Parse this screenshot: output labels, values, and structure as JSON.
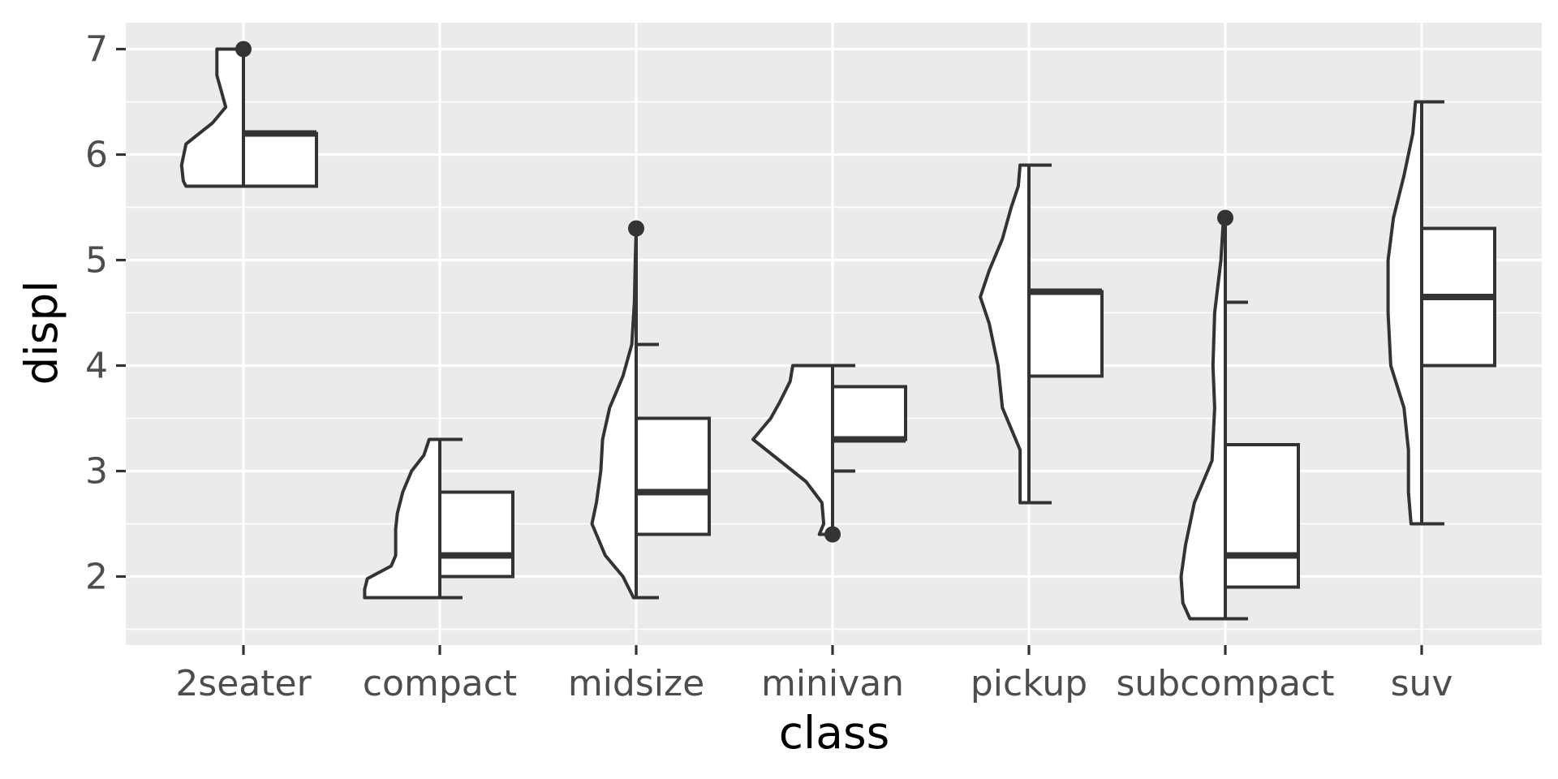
{
  "chart_data": {
    "type": "half-violin-boxplot",
    "xlabel": "class",
    "ylabel": "displ",
    "categories": [
      "2seater",
      "compact",
      "midsize",
      "minivan",
      "pickup",
      "subcompact",
      "suv"
    ],
    "ylim": [
      1.35,
      7.25
    ],
    "yticks": [
      2,
      3,
      4,
      5,
      6,
      7
    ],
    "grid": true,
    "boxes": [
      {
        "class": "2seater",
        "min": 5.7,
        "q1": 5.7,
        "median": 6.2,
        "q3": 6.2,
        "max": 6.2,
        "outliers": [
          7.0
        ]
      },
      {
        "class": "compact",
        "min": 1.8,
        "q1": 2.0,
        "median": 2.2,
        "q3": 2.8,
        "max": 3.3,
        "outliers": []
      },
      {
        "class": "midsize",
        "min": 1.8,
        "q1": 2.4,
        "median": 2.8,
        "q3": 3.5,
        "max": 4.2,
        "outliers": [
          5.3
        ]
      },
      {
        "class": "minivan",
        "min": 3.0,
        "q1": 3.3,
        "median": 3.3,
        "q3": 3.8,
        "max": 4.0,
        "outliers": [
          2.4
        ]
      },
      {
        "class": "pickup",
        "min": 2.7,
        "q1": 3.9,
        "median": 4.7,
        "q3": 4.7,
        "max": 5.9,
        "outliers": []
      },
      {
        "class": "subcompact",
        "min": 1.6,
        "q1": 1.9,
        "median": 2.2,
        "q3": 3.25,
        "max": 4.6,
        "outliers": [
          5.4
        ]
      },
      {
        "class": "suv",
        "min": 2.5,
        "q1": 4.0,
        "median": 4.65,
        "q3": 5.3,
        "max": 6.5,
        "outliers": []
      }
    ],
    "violins": [
      {
        "class": "2seater",
        "density": [
          [
            5.7,
            0.65
          ],
          [
            5.75,
            0.68
          ],
          [
            5.9,
            0.7
          ],
          [
            6.1,
            0.65
          ],
          [
            6.3,
            0.35
          ],
          [
            6.45,
            0.2
          ],
          [
            6.6,
            0.25
          ],
          [
            6.75,
            0.3
          ],
          [
            6.9,
            0.3
          ],
          [
            7.0,
            0.3
          ]
        ]
      },
      {
        "class": "compact",
        "density": [
          [
            1.8,
            0.85
          ],
          [
            1.88,
            0.85
          ],
          [
            1.98,
            0.82
          ],
          [
            2.1,
            0.55
          ],
          [
            2.2,
            0.5
          ],
          [
            2.3,
            0.5
          ],
          [
            2.45,
            0.5
          ],
          [
            2.6,
            0.48
          ],
          [
            2.8,
            0.42
          ],
          [
            3.0,
            0.32
          ],
          [
            3.15,
            0.18
          ],
          [
            3.3,
            0.12
          ]
        ]
      },
      {
        "class": "midsize",
        "density": [
          [
            1.8,
            0.03
          ],
          [
            2.0,
            0.15
          ],
          [
            2.2,
            0.35
          ],
          [
            2.5,
            0.5
          ],
          [
            2.7,
            0.45
          ],
          [
            3.0,
            0.4
          ],
          [
            3.3,
            0.38
          ],
          [
            3.6,
            0.3
          ],
          [
            3.9,
            0.15
          ],
          [
            4.2,
            0.05
          ],
          [
            4.6,
            0.02
          ],
          [
            5.0,
            0.01
          ],
          [
            5.3,
            0.0
          ]
        ]
      },
      {
        "class": "minivan",
        "density": [
          [
            2.4,
            0.15
          ],
          [
            2.5,
            0.1
          ],
          [
            2.7,
            0.12
          ],
          [
            2.9,
            0.3
          ],
          [
            3.1,
            0.6
          ],
          [
            3.3,
            0.9
          ],
          [
            3.5,
            0.7
          ],
          [
            3.65,
            0.6
          ],
          [
            3.85,
            0.48
          ],
          [
            4.0,
            0.45
          ]
        ]
      },
      {
        "class": "pickup",
        "density": [
          [
            2.7,
            0.1
          ],
          [
            2.9,
            0.1
          ],
          [
            3.2,
            0.1
          ],
          [
            3.6,
            0.3
          ],
          [
            4.0,
            0.35
          ],
          [
            4.4,
            0.45
          ],
          [
            4.65,
            0.55
          ],
          [
            4.9,
            0.45
          ],
          [
            5.2,
            0.3
          ],
          [
            5.5,
            0.2
          ],
          [
            5.7,
            0.12
          ],
          [
            5.9,
            0.1
          ]
        ]
      },
      {
        "class": "subcompact",
        "density": [
          [
            1.6,
            0.4
          ],
          [
            1.75,
            0.48
          ],
          [
            2.0,
            0.5
          ],
          [
            2.3,
            0.45
          ],
          [
            2.7,
            0.35
          ],
          [
            3.1,
            0.15
          ],
          [
            3.6,
            0.12
          ],
          [
            4.0,
            0.14
          ],
          [
            4.5,
            0.12
          ],
          [
            5.0,
            0.05
          ],
          [
            5.4,
            0.02
          ]
        ]
      },
      {
        "class": "suv",
        "density": [
          [
            2.5,
            0.12
          ],
          [
            2.8,
            0.15
          ],
          [
            3.2,
            0.15
          ],
          [
            3.6,
            0.2
          ],
          [
            4.0,
            0.35
          ],
          [
            4.5,
            0.38
          ],
          [
            5.0,
            0.38
          ],
          [
            5.4,
            0.32
          ],
          [
            5.8,
            0.2
          ],
          [
            6.2,
            0.1
          ],
          [
            6.5,
            0.07
          ]
        ]
      }
    ]
  },
  "colors": {
    "panel": "#ebebeb",
    "grid": "#ffffff",
    "stroke": "#333333",
    "fill": "#ffffff",
    "tick_text": "#4d4d4d",
    "axis_text": "#000000"
  }
}
